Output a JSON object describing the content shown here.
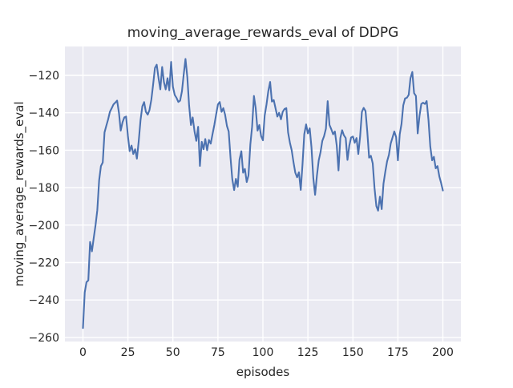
{
  "colors": {
    "figure_background": "#ffffff",
    "axes_background": "#EAEAF2",
    "grid_line": "#ffffff",
    "series_line": "#4C72B0",
    "text": "#262626"
  },
  "chart_data": {
    "type": "line",
    "title": "moving_average_rewards_eval of DDPG",
    "xlabel": "episodes",
    "ylabel": "moving_average_rewards_eval",
    "grid": true,
    "legend": "none",
    "xlim": [
      -10,
      210
    ],
    "ylim": [
      -262.2,
      -104.58
    ],
    "x_tick_values": [
      0,
      25,
      50,
      75,
      100,
      125,
      150,
      175,
      200
    ],
    "x_tick_labels": [
      "0",
      "25",
      "50",
      "75",
      "100",
      "125",
      "150",
      "175",
      "200"
    ],
    "y_tick_values": [
      -120,
      -140,
      -160,
      -180,
      -200,
      -220,
      -240,
      -260
    ],
    "y_tick_labels": [
      "−120",
      "−140",
      "−160",
      "−180",
      "−200",
      "−220",
      "−240",
      "−260"
    ],
    "series": [
      {
        "name": "moving_average_rewards_eval",
        "color": "#4C72B0",
        "x_start": 0,
        "x_step": 1,
        "values": [
          -255,
          -236,
          -230.5,
          -229.5,
          -209,
          -214,
          -207,
          -200,
          -192,
          -176,
          -168.5,
          -166.5,
          -150.5,
          -147,
          -143.5,
          -139.5,
          -137.5,
          -135.5,
          -134.5,
          -133.5,
          -140,
          -149.5,
          -145,
          -142.5,
          -142,
          -152.5,
          -160.5,
          -157.5,
          -162,
          -159.5,
          -164.5,
          -155,
          -144,
          -136.5,
          -134.3,
          -139.5,
          -141,
          -138.5,
          -133,
          -125,
          -116,
          -114.3,
          -121.5,
          -127.5,
          -115.5,
          -123.5,
          -127.5,
          -121.5,
          -128,
          -112.8,
          -126,
          -130.5,
          -132,
          -134.2,
          -133.5,
          -128.5,
          -119.5,
          -111.2,
          -121,
          -136,
          -146.5,
          -142.5,
          -150,
          -155,
          -147.5,
          -168.4,
          -155.5,
          -159.5,
          -154,
          -160,
          -154.5,
          -156.5,
          -151.5,
          -146.5,
          -141,
          -135.5,
          -134.2,
          -139.5,
          -137.5,
          -141,
          -147,
          -150,
          -164,
          -175.5,
          -181.3,
          -175.3,
          -179.5,
          -165,
          -160.5,
          -172,
          -170,
          -177,
          -173.5,
          -157,
          -147.5,
          -131,
          -137.5,
          -149.5,
          -146.5,
          -152.5,
          -154.7,
          -141.5,
          -135.5,
          -128.5,
          -123.5,
          -134,
          -133.2,
          -137.5,
          -142,
          -140,
          -143.5,
          -139.5,
          -138,
          -137.5,
          -150.5,
          -156,
          -160,
          -166.5,
          -172,
          -174.5,
          -171.8,
          -181.2,
          -167.5,
          -151.5,
          -146.2,
          -151,
          -148.3,
          -158.5,
          -175,
          -183.8,
          -173.5,
          -165.5,
          -161,
          -155,
          -152.5,
          -148.5,
          -133.8,
          -146.5,
          -148.8,
          -151.5,
          -150,
          -157.5,
          -170.8,
          -153.5,
          -149.3,
          -152,
          -153.5,
          -165.2,
          -157.5,
          -153.2,
          -152.7,
          -156,
          -153.5,
          -162,
          -152.5,
          -139.5,
          -137.4,
          -139,
          -150,
          -164,
          -163,
          -167,
          -180,
          -189.8,
          -192.3,
          -184.8,
          -191.5,
          -178,
          -171.5,
          -166,
          -162.5,
          -156.5,
          -153.2,
          -150,
          -153,
          -165.4,
          -151.5,
          -146,
          -136,
          -132.3,
          -132,
          -130.4,
          -121.5,
          -118.2,
          -129.5,
          -131,
          -151,
          -141.5,
          -135.3,
          -134.6,
          -135.3,
          -133.7,
          -144,
          -158,
          -165.4,
          -163.5,
          -169.7,
          -168.5,
          -174,
          -177.5,
          -181.5
        ]
      }
    ]
  }
}
